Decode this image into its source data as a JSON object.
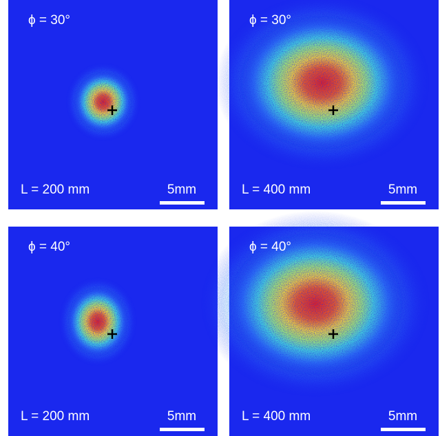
{
  "panels": [
    {
      "angle_label": "ϕ = 30°",
      "distance_label": "L = 200 mm",
      "scale_label": "5mm"
    },
    {
      "angle_label": "ϕ = 30°",
      "distance_label": "L = 400 mm",
      "scale_label": "5mm"
    },
    {
      "angle_label": "ϕ = 40°",
      "distance_label": "L = 200 mm",
      "scale_label": "5mm"
    },
    {
      "angle_label": "ϕ = 40°",
      "distance_label": "L = 400 mm",
      "scale_label": "5mm"
    }
  ]
}
